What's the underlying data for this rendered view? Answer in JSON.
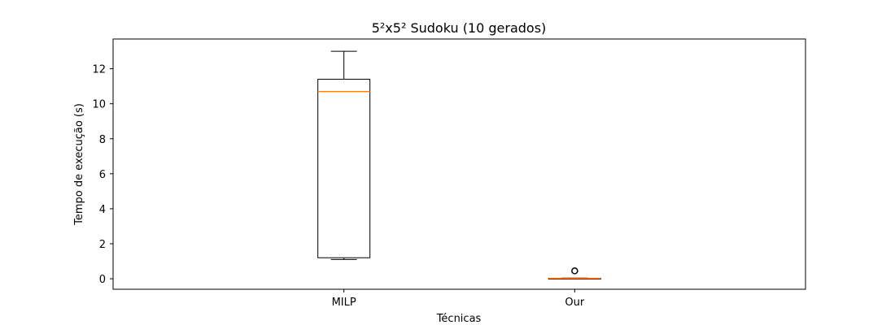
{
  "chart_data": {
    "type": "box",
    "title": "5²x5² Sudoku (10 gerados)",
    "xlabel": "Técnicas",
    "ylabel": "Tempo de execução (s)",
    "ylim": [
      -0.6,
      13.7
    ],
    "yticks": [
      0,
      2,
      4,
      6,
      8,
      10,
      12
    ],
    "grid": false,
    "categories": [
      "MILP",
      "Our"
    ],
    "boxes": [
      {
        "name": "MILP",
        "whisker_low": 1.1,
        "q1": 1.2,
        "median": 10.7,
        "q3": 11.4,
        "whisker_high": 13.0,
        "outliers": []
      },
      {
        "name": "Our",
        "whisker_low": 0.0,
        "q1": 0.0,
        "median": 0.02,
        "q3": 0.03,
        "whisker_high": 0.04,
        "outliers": [
          0.45
        ]
      }
    ],
    "colors": {
      "box": "#000000",
      "median": "#ff7f0e",
      "outlier": "#000000"
    }
  }
}
